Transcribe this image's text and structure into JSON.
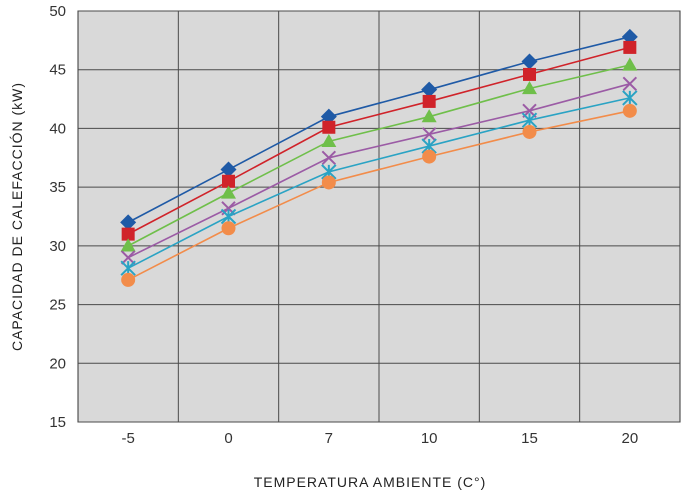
{
  "chart_data": {
    "type": "line",
    "title": "",
    "xlabel": "TEMPERATURA AMBIENTE (C°)",
    "ylabel": "CAPACIDAD DE CALEFACCIÓN (kW)",
    "categories": [
      "-5",
      "0",
      "7",
      "10",
      "15",
      "20"
    ],
    "ylim": [
      15,
      50
    ],
    "yticks": [
      15,
      20,
      25,
      30,
      35,
      40,
      45,
      50
    ],
    "grid": true,
    "background": "#d9d9d9",
    "series": [
      {
        "color": "#1f5aa6",
        "marker": "diamond",
        "values": [
          32.0,
          36.5,
          41.0,
          43.3,
          45.7,
          47.8
        ]
      },
      {
        "color": "#d0232a",
        "marker": "square",
        "values": [
          31.0,
          35.5,
          40.1,
          42.3,
          44.6,
          46.9
        ]
      },
      {
        "color": "#6fbf4a",
        "marker": "triangle",
        "values": [
          30.0,
          34.5,
          38.9,
          41.0,
          43.4,
          45.4
        ]
      },
      {
        "color": "#9b5ba5",
        "marker": "x",
        "values": [
          29.0,
          33.2,
          37.5,
          39.5,
          41.5,
          43.8
        ]
      },
      {
        "color": "#2aa3c4",
        "marker": "star",
        "values": [
          28.1,
          32.5,
          36.3,
          38.5,
          40.7,
          42.6
        ]
      },
      {
        "color": "#f28c4a",
        "marker": "circle",
        "values": [
          27.1,
          31.5,
          35.4,
          37.6,
          39.7,
          41.5
        ]
      }
    ]
  }
}
